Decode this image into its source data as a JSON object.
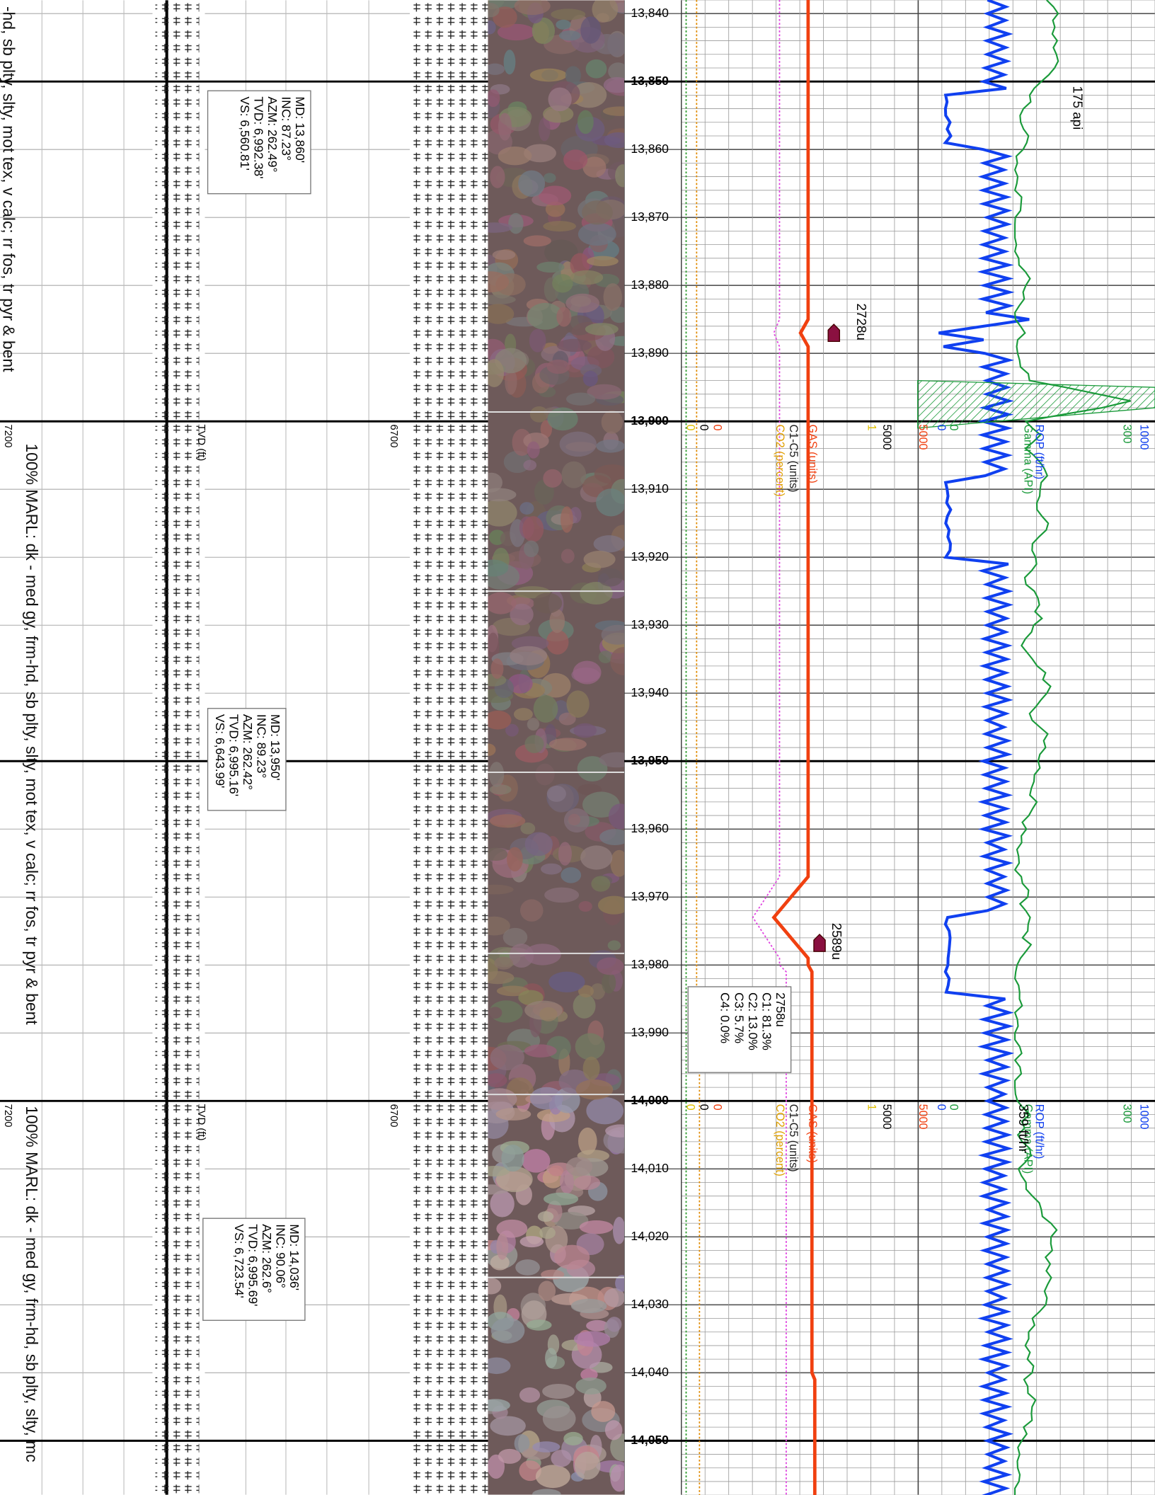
{
  "depth_track": {
    "labels": [
      "13,840",
      "13,850",
      "13,860",
      "13,870",
      "13,880",
      "13,890",
      "13,900",
      "13,910",
      "13,920",
      "13,930",
      "13,940",
      "13,950",
      "13,960",
      "13,970",
      "13,980",
      "13,990",
      "14,000",
      "14,010",
      "14,020",
      "14,030",
      "14,040",
      "14,050"
    ]
  },
  "lithology": {
    "descriptions": [
      "-hd, sb plty, slty, mot tex, v calc; rr fos, tr pyr & bent",
      "100% MARL: dk - med gy, frm-hd, sb plty, slty, mot tex, v calc; rr fos, tr pyr & bent",
      "100% MARL: dk - med gy, frm-hd, sb plty, slty, mc"
    ]
  },
  "track_headers": [
    {
      "tvd_min": "7200",
      "tvd_label": "TVD (ft)",
      "tvd_max": "6700",
      "gas_min": "0",
      "c1c5_min": "0",
      "co2_min": "0",
      "c1c5_label": "C1-C5 (units)",
      "co2_label": "CO2 (percent)",
      "gas_label": "GAS (units)",
      "co2_max": "1",
      "c1c5_max": "5000",
      "gas_max": "5000",
      "rop_min": "0",
      "gamma_min": "0",
      "rop_label": "ROP (ft/hr)",
      "gamma_label": "Gamma (API)",
      "rop_max": "1000",
      "gamma_max": "300"
    },
    {
      "tvd_min": "7200",
      "tvd_label": "TVD (ft)",
      "tvd_max": "6700",
      "gas_min": "0",
      "c1c5_min": "0",
      "co2_min": "0",
      "c1c5_label": "C1-C5 (units)",
      "co2_label": "CO2 (percent)",
      "gas_label": "GAS (units)",
      "co2_max": "1",
      "c1c5_max": "5000",
      "gas_max": "5000",
      "rop_min": "0",
      "gamma_min": "0",
      "rop_label": "ROP (ft/hr)",
      "gamma_label": "Gamma (API)",
      "rop_max": "1000",
      "gamma_max": "300"
    }
  ],
  "surveys": [
    {
      "lines": [
        "MD: 13,860'",
        "INC: 87.23°",
        "AZM: 262.49°",
        "TVD: 6,992.38'",
        "VS: 6,560.81'"
      ]
    },
    {
      "lines": [
        "MD: 13,950'",
        "INC: 89.23°",
        "AZM: 262.42°",
        "TVD: 6,995.16'",
        "VS: 6,643.99'"
      ]
    },
    {
      "lines": [
        "MD: 14,036'",
        "INC: 90.06°",
        "AZM: 262.6°",
        "TVD: 6,995.69'",
        "VS: 6,723.54'"
      ]
    }
  ],
  "annotations": {
    "gamma_peak": "175 api",
    "gas_peak_1": "2728u",
    "gas_peak_2": "2589u",
    "rop_value": "359 ft/hr"
  },
  "gas_composition": {
    "lines": [
      "2758u",
      "C1: 81.3%",
      "C2: 13.0%",
      "C3: 5.7%",
      "C4: 0.0%"
    ]
  }
}
